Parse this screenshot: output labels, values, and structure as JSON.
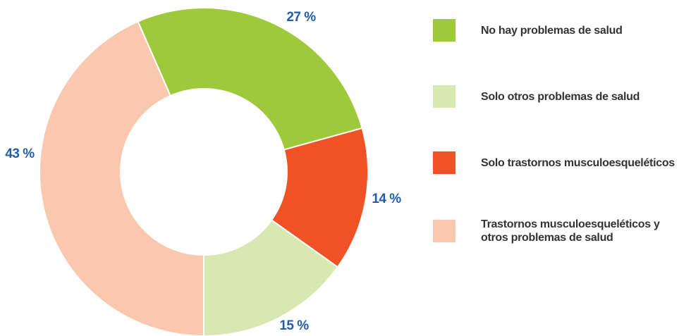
{
  "chart_data": {
    "type": "donut",
    "categories": [
      "No hay problemas de salud",
      "Solo otros problemas de salud",
      "Solo trastornos musculoesqueléticos",
      "Trastornos musculoesqueléticos y otros problemas de salud"
    ],
    "values": [
      27,
      15,
      14,
      43
    ],
    "value_labels": [
      "27 %",
      "15 %",
      "14 %",
      "43 %"
    ],
    "colors": [
      "#9dc93b",
      "#d7e8b1",
      "#f15225",
      "#f9c8ae"
    ]
  }
}
